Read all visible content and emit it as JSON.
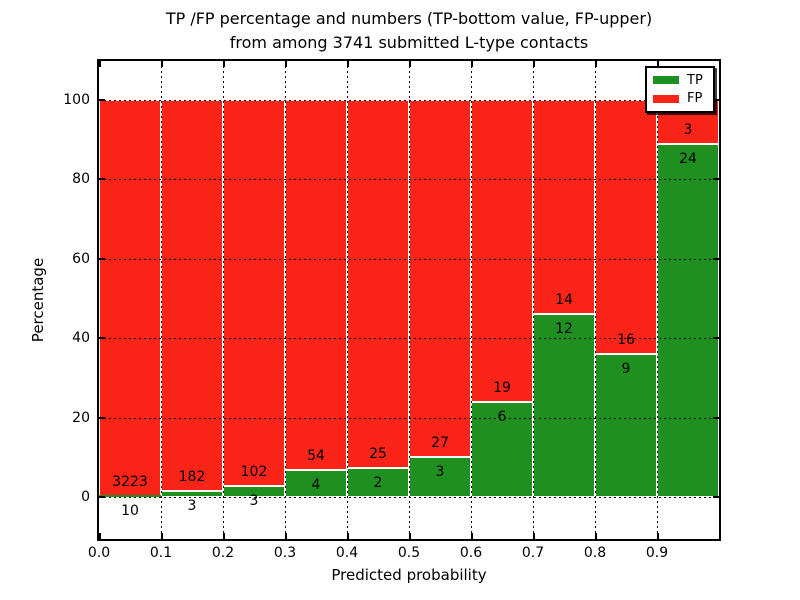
{
  "figure": {
    "title_line1": "TP /FP percentage and numbers (TP-bottom value, FP-upper)",
    "title_line2": "from among 3741 submitted L-type contacts"
  },
  "chart_data": {
    "type": "bar",
    "stacked": true,
    "orientation": "vertical",
    "title": "TP /FP percentage and numbers (TP-bottom value, FP-upper) from among 3741 submitted L-type contacts",
    "xlabel": "Predicted probability",
    "ylabel": "Percentage",
    "total_contacts": 3741,
    "bin_edges": [
      0.0,
      0.1,
      0.2,
      0.3,
      0.4,
      0.5,
      0.6,
      0.7,
      0.8,
      0.9,
      1.0
    ],
    "categories": [
      "0.0-0.1",
      "0.1-0.2",
      "0.2-0.3",
      "0.3-0.4",
      "0.4-0.5",
      "0.5-0.6",
      "0.6-0.7",
      "0.7-0.8",
      "0.8-0.9",
      "0.9-1.0"
    ],
    "series": [
      {
        "name": "TP",
        "color": "#1f8f1f",
        "counts": [
          10,
          3,
          3,
          4,
          2,
          3,
          6,
          12,
          9,
          24
        ]
      },
      {
        "name": "FP",
        "color": "#fa2419",
        "counts": [
          3223,
          182,
          102,
          54,
          25,
          27,
          19,
          14,
          16,
          3
        ]
      }
    ],
    "tp_percent": [
      0.31,
      1.62,
      2.86,
      6.9,
      7.41,
      10.0,
      24.0,
      46.15,
      36.0,
      88.89
    ],
    "bar_height_total_percent": 100,
    "xticks": [
      "0.0",
      "0.1",
      "0.2",
      "0.3",
      "0.4",
      "0.5",
      "0.6",
      "0.7",
      "0.8",
      "0.9"
    ],
    "yticks": [
      "0",
      "20",
      "40",
      "60",
      "80",
      "100"
    ],
    "xlim": [
      0.0,
      1.0
    ],
    "ylim": [
      -10.8,
      109.8
    ],
    "grid": {
      "style": "dotted",
      "color": "#000000"
    },
    "legend": {
      "position": "upper right",
      "entries": [
        {
          "label": "TP",
          "color": "#1f8f1f"
        },
        {
          "label": "FP",
          "color": "#fa2419"
        }
      ]
    }
  }
}
